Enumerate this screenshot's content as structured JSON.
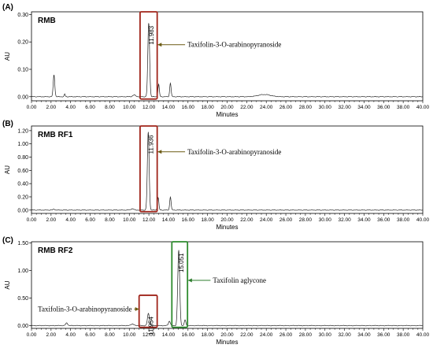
{
  "chart_data": [
    {
      "type": "line",
      "panel_label": "(A)",
      "title": "RMB",
      "ylabel": "AU",
      "xlabel": "Minutes",
      "xlim": [
        0,
        40
      ],
      "ylim": [
        -0.015,
        0.31
      ],
      "yticks": [
        0.0,
        0.1,
        0.2,
        0.3
      ],
      "ytick_labels": [
        "0.00",
        "0.10",
        "0.20",
        "0.30"
      ],
      "xticks": [
        0,
        2,
        4,
        6,
        8,
        10,
        12,
        14,
        16,
        18,
        20,
        22,
        24,
        26,
        28,
        30,
        32,
        34,
        36,
        38,
        40
      ],
      "xtick_labels": [
        "0.00",
        "2.00",
        "4.00",
        "6.00",
        "8.00",
        "10.00",
        "12.00",
        "14.00",
        "16.00",
        "18.00",
        "20.00",
        "22.00",
        "24.00",
        "26.00",
        "28.00",
        "30.00",
        "32.00",
        "34.00",
        "36.00",
        "38.00",
        "40.00"
      ],
      "peaks": [
        {
          "rt": 2.3,
          "height": 0.08,
          "width": 0.08
        },
        {
          "rt": 3.4,
          "height": 0.01,
          "width": 0.05
        },
        {
          "rt": 10.5,
          "height": 0.006,
          "width": 0.15
        },
        {
          "rt": 11.983,
          "height": 0.27,
          "width": 0.09
        },
        {
          "rt": 13.0,
          "height": 0.045,
          "width": 0.07
        },
        {
          "rt": 14.2,
          "height": 0.05,
          "width": 0.07
        },
        {
          "rt": 23.8,
          "height": 0.008,
          "width": 0.6
        }
      ],
      "peak_label": "11.983",
      "peak_label_rt": 11.983,
      "box": {
        "x0": 11.1,
        "x1": 12.85,
        "color": "#a0241a"
      },
      "annotations": [
        {
          "text": "Taxifolin-3-O-arabinopyranoside",
          "arrow_from_x": 15.7,
          "arrow_to_x": 12.9,
          "y": 0.19,
          "color": "#6b5a12"
        }
      ]
    },
    {
      "type": "line",
      "panel_label": "(B)",
      "title": "RMB RF1",
      "ylabel": "AU",
      "xlabel": "Minutes",
      "xlim": [
        0,
        40
      ],
      "ylim": [
        -0.05,
        1.27
      ],
      "yticks": [
        0.0,
        0.2,
        0.4,
        0.6,
        0.8,
        1.0,
        1.2
      ],
      "ytick_labels": [
        "0.00",
        "0.20",
        "0.40",
        "0.60",
        "0.80",
        "1.00",
        "1.20"
      ],
      "xticks": [
        0,
        2,
        4,
        6,
        8,
        10,
        12,
        14,
        16,
        18,
        20,
        22,
        24,
        26,
        28,
        30,
        32,
        34,
        36,
        38,
        40
      ],
      "xtick_labels": [
        "0.00",
        "2.00",
        "4.00",
        "6.00",
        "8.00",
        "10.00",
        "12.00",
        "14.00",
        "16.00",
        "18.00",
        "20.00",
        "22.00",
        "24.00",
        "26.00",
        "28.00",
        "30.00",
        "32.00",
        "34.00",
        "36.00",
        "38.00",
        "40.00"
      ],
      "peaks": [
        {
          "rt": 2.3,
          "height": 0.015,
          "width": 0.08
        },
        {
          "rt": 10.3,
          "height": 0.02,
          "width": 0.15
        },
        {
          "rt": 11.936,
          "height": 1.18,
          "width": 0.09
        },
        {
          "rt": 12.95,
          "height": 0.19,
          "width": 0.07
        },
        {
          "rt": 14.2,
          "height": 0.2,
          "width": 0.07
        }
      ],
      "peak_label": "11.936",
      "peak_label_rt": 11.936,
      "box": {
        "x0": 11.1,
        "x1": 12.85,
        "color": "#a0241a"
      },
      "annotations": [
        {
          "text": "Taxifolin-3-O-arabinopyranoside",
          "arrow_from_x": 15.7,
          "arrow_to_x": 12.9,
          "y": 0.88,
          "color": "#6b5a12"
        }
      ]
    },
    {
      "type": "line",
      "panel_label": "(C)",
      "title": "RMB RF2",
      "ylabel": "AU",
      "xlabel": "Minutes",
      "xlim": [
        0,
        40
      ],
      "ylim": [
        -0.05,
        1.52
      ],
      "yticks": [
        0.0,
        0.5,
        1.0,
        1.5
      ],
      "ytick_labels": [
        "0.00",
        "0.50",
        "1.00",
        "1.50"
      ],
      "xticks": [
        0,
        2,
        4,
        6,
        8,
        10,
        12,
        14,
        16,
        18,
        20,
        22,
        24,
        26,
        28,
        30,
        32,
        34,
        36,
        38,
        40
      ],
      "xtick_labels": [
        "0.00",
        "2.00",
        "4.00",
        "6.00",
        "8.00",
        "10.00",
        "12.00",
        "14.00",
        "16.00",
        "18.00",
        "20.00",
        "22.00",
        "24.00",
        "26.00",
        "28.00",
        "30.00",
        "32.00",
        "34.00",
        "36.00",
        "38.00",
        "40.00"
      ],
      "peaks": [
        {
          "rt": 3.6,
          "height": 0.05,
          "width": 0.1
        },
        {
          "rt": 10.3,
          "height": 0.03,
          "width": 0.15
        },
        {
          "rt": 11.954,
          "height": 0.22,
          "width": 0.1
        },
        {
          "rt": 14.1,
          "height": 0.08,
          "width": 0.1
        },
        {
          "rt": 15.051,
          "height": 1.37,
          "width": 0.1
        },
        {
          "rt": 15.7,
          "height": 0.1,
          "width": 0.08
        }
      ],
      "peak_label": "15.051",
      "peak_label_rt": 15.051,
      "peak_label2": "11.954",
      "peak_label2_rt": 11.954,
      "boxes": [
        {
          "x0": 11.0,
          "x1": 12.85,
          "y0": -0.03,
          "y1": 0.55,
          "color": "#a0241a"
        },
        {
          "x0": 14.35,
          "x1": 15.95,
          "y0": -0.03,
          "y1": 1.52,
          "color": "#2e8b2e"
        }
      ],
      "annotations": [
        {
          "text": "Taxifolin aglycone",
          "arrow_from_x": 18.3,
          "arrow_to_x": 16.0,
          "y": 0.82,
          "color": "#2e7d2e"
        },
        {
          "text": "Taxifolin-3-O-arabinopyranoside",
          "arrow_from_x": 10.5,
          "arrow_to_x": 11.0,
          "y": 0.3,
          "color": "#6b5a12"
        }
      ]
    }
  ]
}
